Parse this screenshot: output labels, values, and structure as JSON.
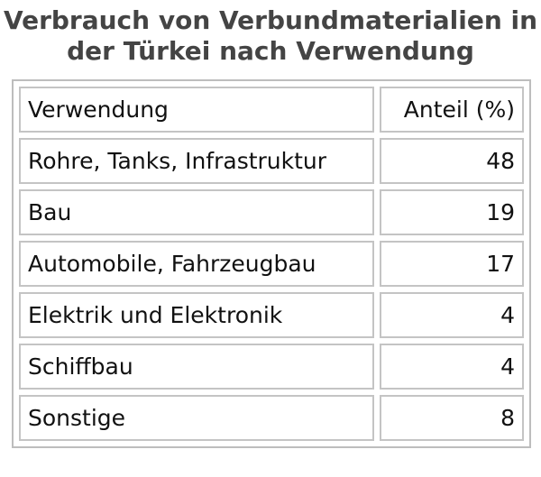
{
  "chart_data": {
    "type": "table",
    "title_line1": "Verbrauch von Verbundmaterialien in",
    "title_line2": "der Türkei nach Verwendung",
    "columns": [
      "Verwendung",
      "Anteil (%)"
    ],
    "rows": [
      {
        "category": "Rohre, Tanks, Infrastruktur",
        "value": "48"
      },
      {
        "category": "Bau",
        "value": "19"
      },
      {
        "category": "Automobile, Fahrzeugbau",
        "value": "17"
      },
      {
        "category": "Elektrik und Elektronik",
        "value": "4"
      },
      {
        "category": "Schiffbau",
        "value": "4"
      },
      {
        "category": "Sonstige",
        "value": "8"
      }
    ]
  }
}
